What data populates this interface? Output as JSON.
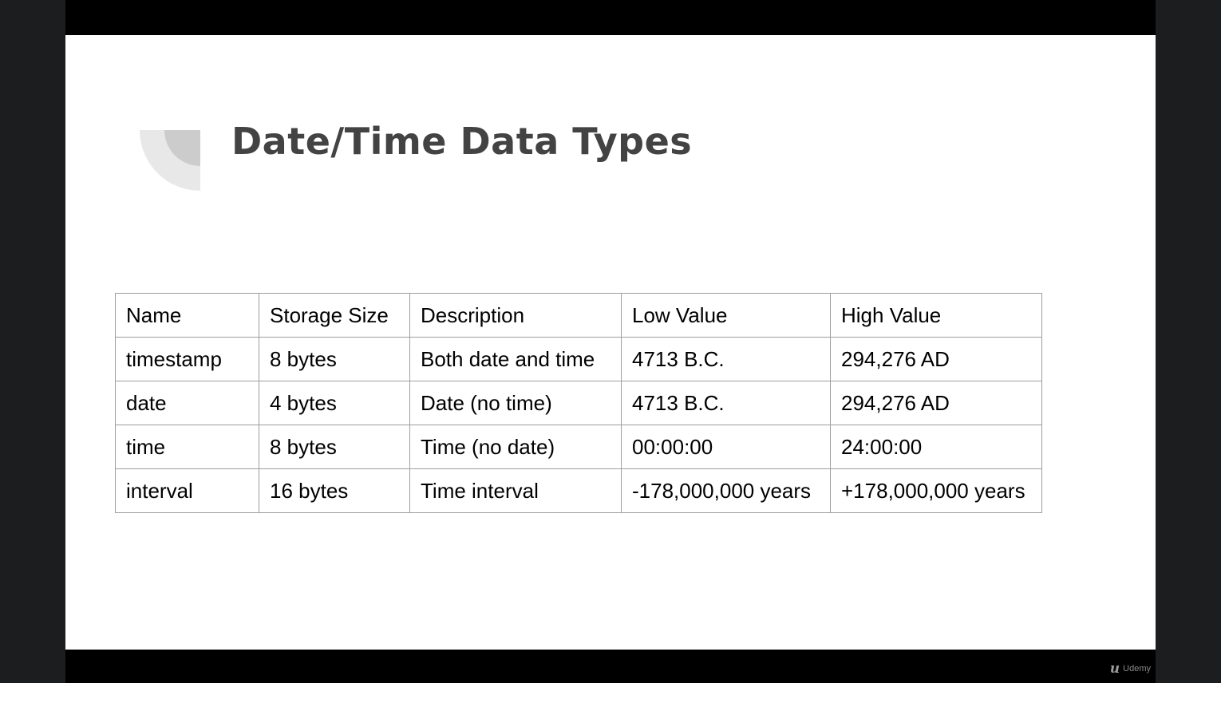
{
  "slide": {
    "title": "Date/Time Data Types"
  },
  "table": {
    "headers": [
      "Name",
      "Storage Size",
      "Description",
      "Low Value",
      "High Value"
    ],
    "rows": [
      [
        "timestamp",
        "8 bytes",
        "Both date and time",
        "4713 B.C.",
        "294,276 AD"
      ],
      [
        "date",
        "4 bytes",
        "Date (no time)",
        "4713 B.C.",
        "294,276 AD"
      ],
      [
        "time",
        "8 bytes",
        "Time (no date)",
        "00:00:00",
        "24:00:00"
      ],
      [
        "interval",
        "16 bytes",
        "Time interval",
        "-178,000,000 years",
        "+178,000,000 years"
      ]
    ]
  },
  "branding": {
    "mark": "u",
    "name": "Udemy",
    "icon": "udemy-logo-icon"
  },
  "colors": {
    "title": "#434343",
    "deco_light": "#e8e8e8",
    "deco_dark": "#cccccc",
    "player_bg": "#1c1d1f",
    "table_border": "#9e9e9e"
  }
}
